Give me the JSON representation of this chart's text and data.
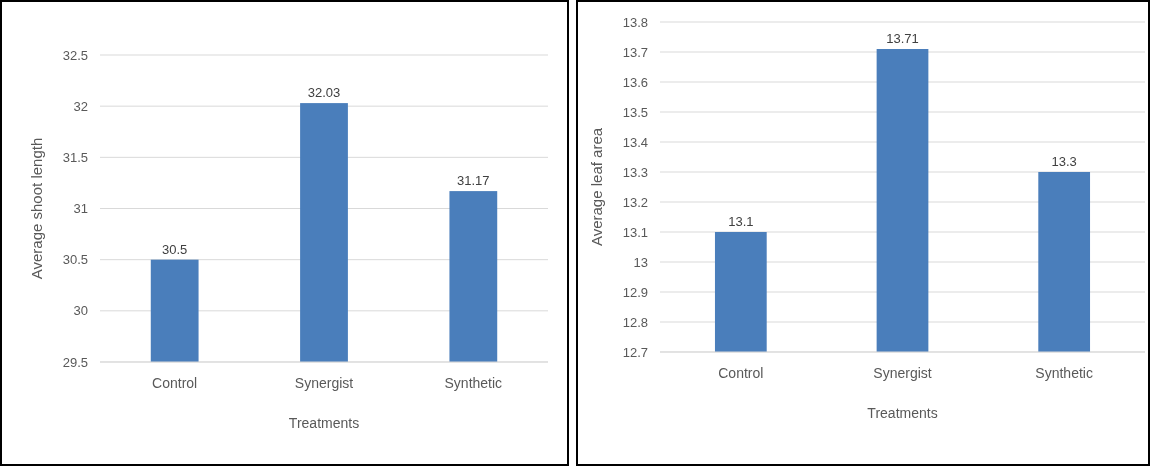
{
  "chart_data": [
    {
      "type": "bar",
      "xlabel": "Treatments",
      "ylabel": "Average shoot length",
      "categories": [
        "Control",
        "Synergist",
        "Synthetic"
      ],
      "values": [
        30.5,
        32.03,
        31.17
      ],
      "color": "#4a7ebb",
      "ylim": [
        29.5,
        32.5
      ],
      "yticks": [
        29.5,
        30,
        30.5,
        31,
        31.5,
        32,
        32.5
      ],
      "grid": "y",
      "data_labels": true
    },
    {
      "type": "bar",
      "xlabel": "Treatments",
      "ylabel": "Average leaf area",
      "categories": [
        "Control",
        "Synergist",
        "Synthetic"
      ],
      "values": [
        13.1,
        13.71,
        13.3
      ],
      "color": "#4a7ebb",
      "ylim": [
        12.7,
        13.8
      ],
      "yticks": [
        12.7,
        12.8,
        12.9,
        13,
        13.1,
        13.2,
        13.3,
        13.4,
        13.5,
        13.6,
        13.7,
        13.8
      ],
      "grid": "y",
      "data_labels": true
    }
  ]
}
